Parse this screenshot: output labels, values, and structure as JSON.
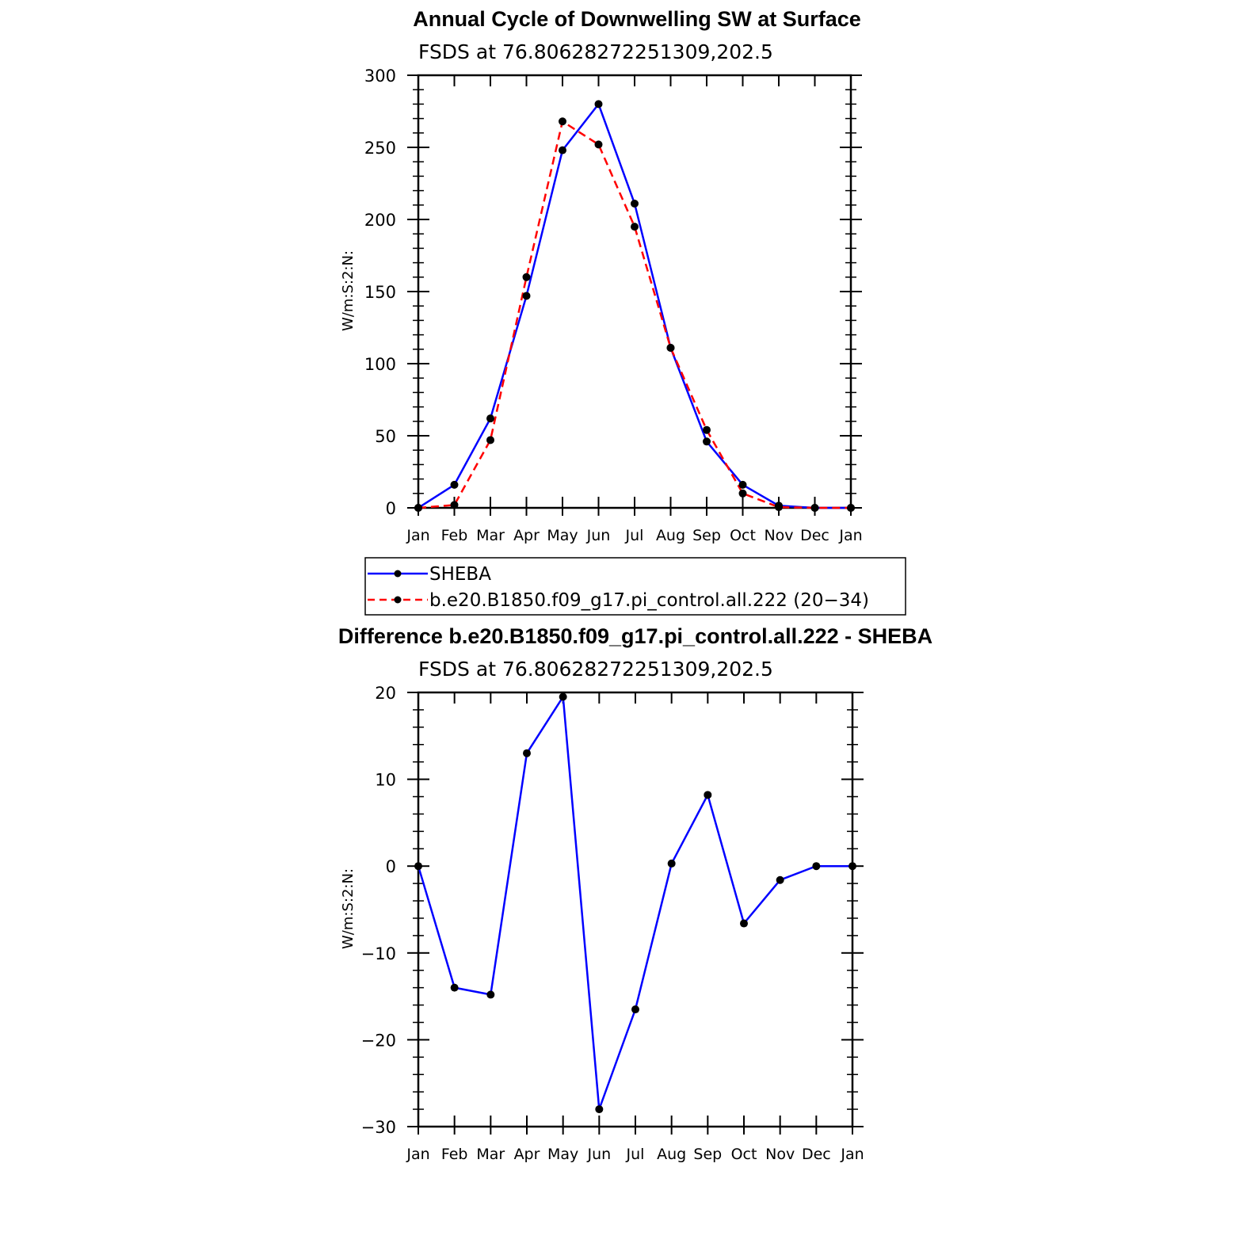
{
  "chart_data": [
    {
      "type": "line",
      "title": "Annual Cycle of Downwelling SW at Surface",
      "subtitle": "FSDS at 76.80628272251309,202.5",
      "ylabel": "W/m:S:2:N:",
      "xlabel": "",
      "categories": [
        "Jan",
        "Feb",
        "Mar",
        "Apr",
        "May",
        "Jun",
        "Jul",
        "Aug",
        "Sep",
        "Oct",
        "Nov",
        "Dec",
        "Jan"
      ],
      "ylim": [
        0,
        300
      ],
      "yticks": [
        "0",
        "50",
        "100",
        "150",
        "200",
        "250",
        "300"
      ],
      "series": [
        {
          "name": "SHEBA",
          "color": "#0000ff",
          "dash": "solid",
          "values": [
            0,
            16,
            62,
            147,
            248,
            280,
            211,
            111,
            46,
            16,
            1.5,
            0,
            0
          ]
        },
        {
          "name": "b.e20.B1850.f09_g17.pi_control.all.222 (20−34)",
          "color": "#ff0000",
          "dash": "dashed",
          "values": [
            0,
            2,
            47,
            160,
            268,
            252,
            195,
            111,
            54,
            10,
            0.5,
            0,
            0
          ]
        }
      ],
      "legend_position": "bottom",
      "grid": false
    },
    {
      "type": "line",
      "title": "Difference b.e20.B1850.f09_g17.pi_control.all.222 - SHEBA",
      "subtitle": "FSDS at 76.80628272251309,202.5",
      "ylabel": "W/m:S:2:N:",
      "xlabel": "",
      "categories": [
        "Jan",
        "Feb",
        "Mar",
        "Apr",
        "May",
        "Jun",
        "Jul",
        "Aug",
        "Sep",
        "Oct",
        "Nov",
        "Dec",
        "Jan"
      ],
      "ylim": [
        -30,
        20
      ],
      "yticks": [
        "−30",
        "−20",
        "−10",
        "0",
        "10",
        "20"
      ],
      "series": [
        {
          "color": "#0000ff",
          "dash": "solid",
          "values": [
            0,
            -14,
            -14.8,
            13,
            19.5,
            -28,
            -16.5,
            0.3,
            8.2,
            -6.6,
            -1.6,
            0,
            0
          ]
        }
      ],
      "grid": false
    }
  ]
}
